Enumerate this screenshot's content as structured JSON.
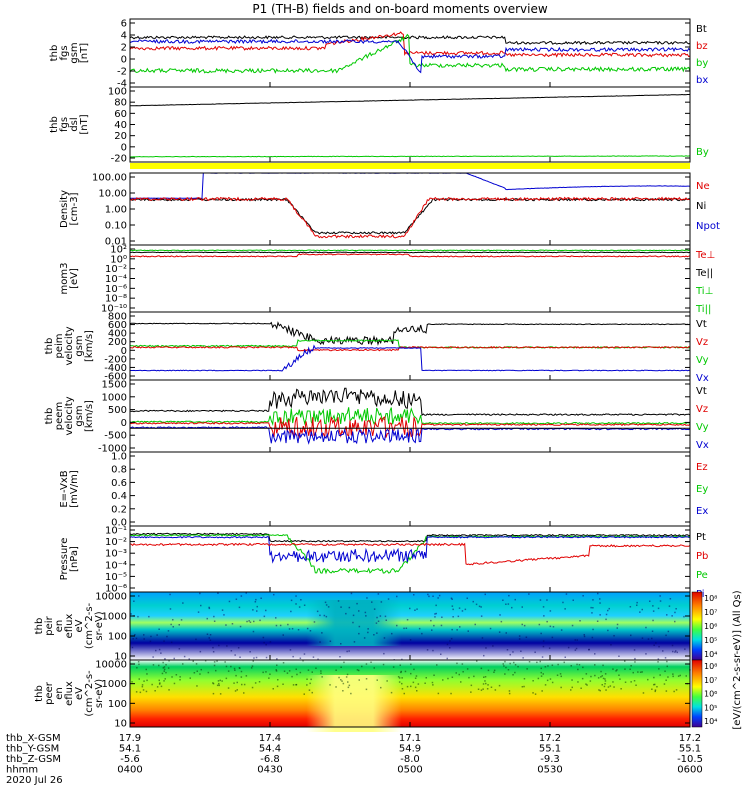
{
  "title": "P1 (TH-B) fields and on-board moments overview",
  "colors": {
    "black": "#000000",
    "red": "#e00000",
    "green": "#00c800",
    "blue": "#0000d0",
    "yellow": "#ffff00"
  },
  "footer": {
    "rows": [
      {
        "label": "thb_X-GSM",
        "values": [
          "17.9",
          "17.4",
          "17.1",
          "17.2",
          "17.2"
        ]
      },
      {
        "label": "thb_Y-GSM",
        "values": [
          "54.1",
          "54.4",
          "54.9",
          "55.1",
          "55.1"
        ]
      },
      {
        "label": "thb_Z-GSM",
        "values": [
          "-5.6",
          "-6.8",
          "-8.0",
          "-9.3",
          "-10.5"
        ]
      },
      {
        "label": "hhmm",
        "values": [
          "0400",
          "0430",
          "0500",
          "0530",
          "0600"
        ]
      }
    ],
    "date": "2020 Jul 26"
  },
  "colorbar": {
    "ticks_top": [
      "10⁸",
      "10⁷",
      "10⁶",
      "10⁵",
      "10⁴"
    ],
    "ticks_bottom": [
      "10⁸",
      "10⁷",
      "10⁶",
      "10⁵",
      "10⁴"
    ],
    "unit": "[eV/(cm^2-s-sr-eV)] (All Qs)"
  },
  "chart_data": [
    {
      "type": "line",
      "ylabel": [
        "thb",
        "fgs",
        "gsm",
        "[nT]"
      ],
      "yticks": [
        "6",
        "4",
        "2",
        "0",
        "-2",
        "-4"
      ],
      "ylim": [
        -4,
        6
      ],
      "series": [
        {
          "name": "Bt",
          "color": "black"
        },
        {
          "name": "bz",
          "color": "red"
        },
        {
          "name": "by",
          "color": "green"
        },
        {
          "name": "bx",
          "color": "blue"
        }
      ]
    },
    {
      "type": "line",
      "ylabel": [
        "thb",
        "fgs",
        "dsl",
        "[nT]"
      ],
      "yticks": [
        "100",
        "80",
        "60",
        "40",
        "20",
        "0",
        "-20"
      ],
      "ylim": [
        -30,
        100
      ],
      "series": [
        {
          "name": "By",
          "color": "green"
        }
      ]
    },
    {
      "type": "line",
      "ylabel": [
        "Density",
        "[cm-3]"
      ],
      "yticks": [
        "100.00",
        "10.00",
        "1.00",
        "0.10",
        "0.01"
      ],
      "scale": "log",
      "series": [
        {
          "name": "Ne",
          "color": "red"
        },
        {
          "name": "Ni",
          "color": "black"
        },
        {
          "name": "Npot",
          "color": "blue"
        }
      ]
    },
    {
      "type": "line",
      "ylabel": [
        "mom3",
        "[eV]"
      ],
      "yticks": [
        "10²",
        "10⁰",
        "10⁻²",
        "10⁻⁴",
        "10⁻⁶",
        "10⁻⁸",
        "10⁻¹⁰"
      ],
      "scale": "log",
      "series": [
        {
          "name": "Te⊥",
          "color": "red"
        },
        {
          "name": "Te||",
          "color": "black"
        },
        {
          "name": "Ti⊥",
          "color": "green"
        },
        {
          "name": "Ti||",
          "color": "green"
        }
      ]
    },
    {
      "type": "line",
      "ylabel": [
        "thb",
        "peim",
        "velocity",
        "gsm",
        "[km/s]"
      ],
      "yticks": [
        "800",
        "600",
        "400",
        "200",
        "0",
        "-200",
        "-400",
        "-600"
      ],
      "ylim": [
        -600,
        800
      ],
      "series": [
        {
          "name": "Vt",
          "color": "black"
        },
        {
          "name": "Vz",
          "color": "red"
        },
        {
          "name": "Vy",
          "color": "green"
        },
        {
          "name": "Vx",
          "color": "blue"
        }
      ]
    },
    {
      "type": "line",
      "ylabel": [
        "thb",
        "peem",
        "velocity",
        "gsm",
        "[km/s]"
      ],
      "yticks": [
        "1500",
        "1000",
        "500",
        "0",
        "-500",
        "-1000"
      ],
      "ylim": [
        -1000,
        1500
      ],
      "series": [
        {
          "name": "Vt",
          "color": "black"
        },
        {
          "name": "Vz",
          "color": "red"
        },
        {
          "name": "Vy",
          "color": "green"
        },
        {
          "name": "Vx",
          "color": "blue"
        }
      ]
    },
    {
      "type": "line",
      "ylabel": [
        "E=-VxB",
        "[mV/m]"
      ],
      "yticks": [
        "1.0",
        "0.8",
        "0.6",
        "0.4",
        "0.2",
        "0.0"
      ],
      "ylim": [
        0,
        1
      ],
      "series": [
        {
          "name": "Ez",
          "color": "red"
        },
        {
          "name": "Ey",
          "color": "green"
        },
        {
          "name": "Ex",
          "color": "blue"
        }
      ]
    },
    {
      "type": "line",
      "ylabel": [
        "Pressure",
        "[nPa]"
      ],
      "yticks": [
        "10⁻¹",
        "10⁻²",
        "10⁻³",
        "10⁻⁴",
        "10⁻⁵",
        "10⁻⁶"
      ],
      "scale": "log",
      "series": [
        {
          "name": "Pt",
          "color": "black"
        },
        {
          "name": "Pb",
          "color": "red"
        },
        {
          "name": "Pe",
          "color": "green"
        },
        {
          "name": "Pi",
          "color": "blue"
        }
      ]
    },
    {
      "type": "heatmap",
      "ylabel": [
        "thb",
        "peir",
        "en",
        "eflux",
        "eV",
        "(cm^2-s-",
        "sr-eV)"
      ],
      "yticks": [
        "10000",
        "1000",
        "100",
        "10"
      ],
      "scale": "log"
    },
    {
      "type": "heatmap",
      "ylabel": [
        "thb",
        "peer",
        "en",
        "eflux",
        "eV",
        "(cm^2-s-",
        "sr-eV)"
      ],
      "yticks": [
        "10000",
        "1000",
        "100",
        "10"
      ],
      "scale": "log"
    }
  ]
}
